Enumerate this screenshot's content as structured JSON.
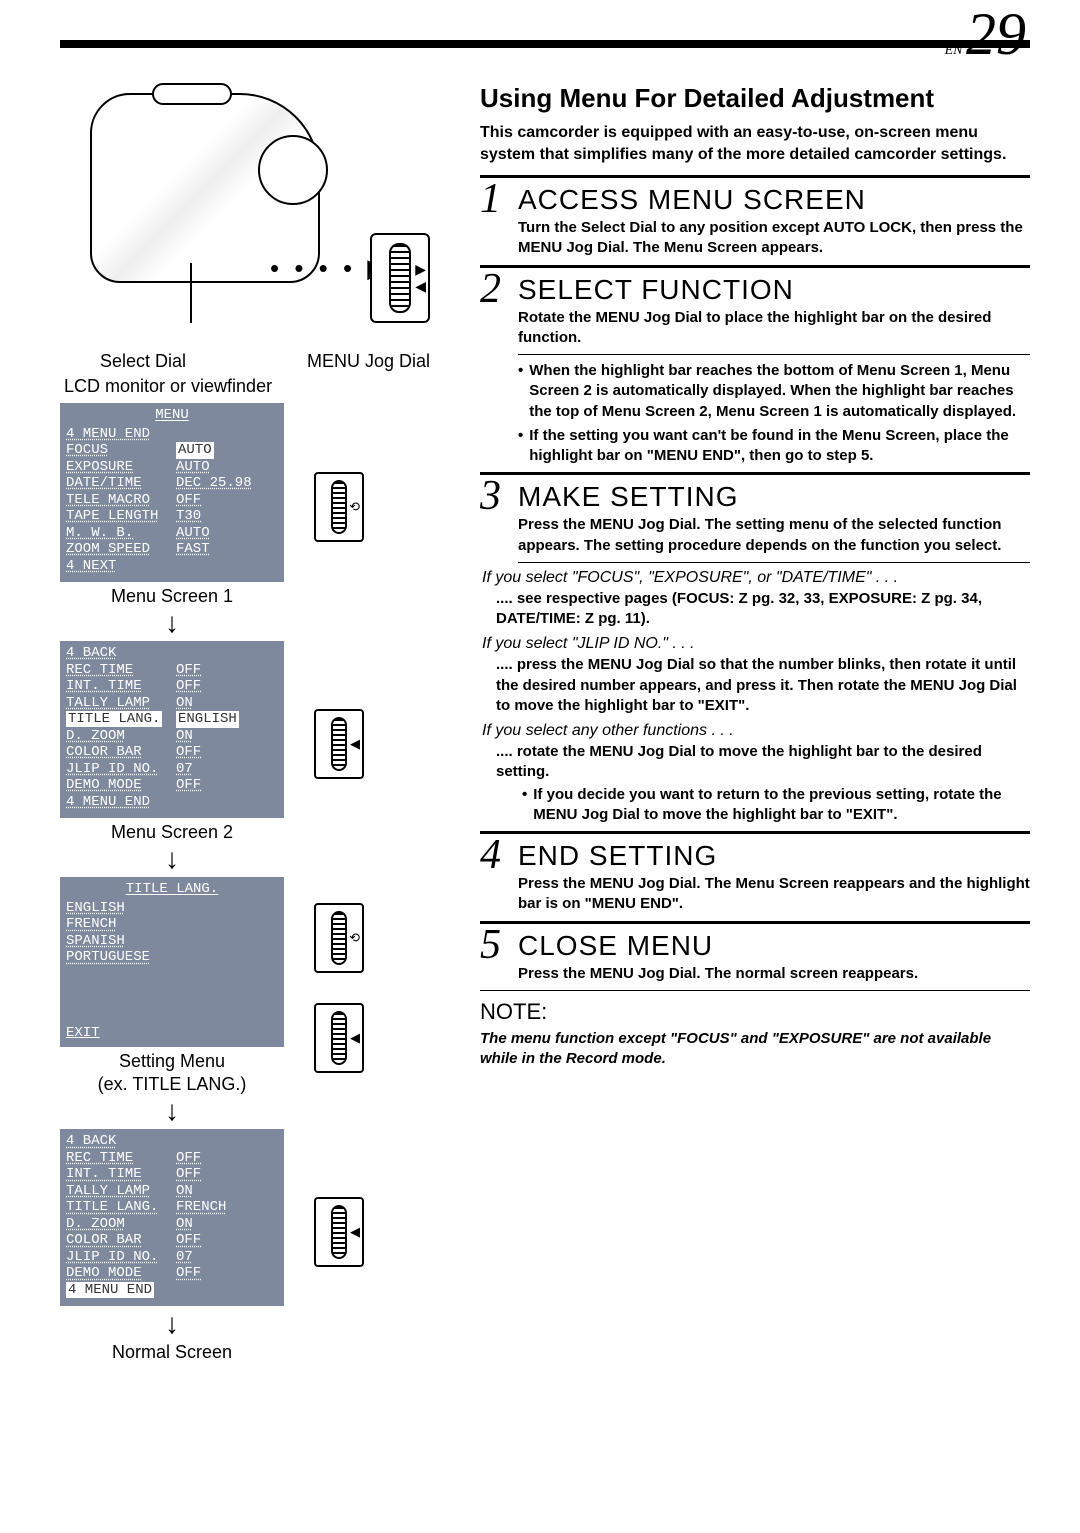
{
  "page": {
    "prefix": "EN",
    "number": "29"
  },
  "colors": {
    "panel_bg": "#7e899d",
    "panel_fg": "#ffffff",
    "highlight_bg": "#ffffff",
    "highlight_fg": "#333333",
    "rule": "#000000",
    "page_bg": "#ffffff"
  },
  "left": {
    "select_dial": "Select Dial",
    "menu_jog_dial": "MENU Jog Dial",
    "lcd_label": "LCD monitor or viewfinder",
    "menu1": {
      "title": "MENU",
      "rows": [
        {
          "k": "4 MENU END",
          "v": ""
        },
        {
          "k": "FOCUS",
          "v": "AUTO",
          "hl": true
        },
        {
          "k": "EXPOSURE",
          "v": "AUTO"
        },
        {
          "k": "DATE/TIME",
          "v": "DEC 25.98"
        },
        {
          "k": "TELE MACRO",
          "v": "OFF"
        },
        {
          "k": "TAPE LENGTH",
          "v": "T30"
        },
        {
          "k": "M. W. B.",
          "v": "AUTO"
        },
        {
          "k": "ZOOM SPEED",
          "v": "FAST"
        },
        {
          "k": "4 NEXT",
          "v": ""
        }
      ],
      "caption": "Menu Screen 1"
    },
    "menu2": {
      "rows": [
        {
          "k": "4 BACK",
          "v": ""
        },
        {
          "k": "REC TIME",
          "v": "OFF"
        },
        {
          "k": "INT. TIME",
          "v": "OFF"
        },
        {
          "k": "TALLY LAMP",
          "v": "ON"
        },
        {
          "k": "TITLE LANG.",
          "v": "ENGLISH",
          "hl": true,
          "hl_key": true
        },
        {
          "k": "D. ZOOM",
          "v": "ON"
        },
        {
          "k": "COLOR BAR",
          "v": "OFF"
        },
        {
          "k": "JLIP ID NO.",
          "v": "07"
        },
        {
          "k": "DEMO MODE",
          "v": "OFF"
        },
        {
          "k": "4 MENU END",
          "v": ""
        }
      ],
      "caption": "Menu Screen 2"
    },
    "setting_menu": {
      "title": "TITLE LANG.",
      "rows": [
        {
          "k": "ENGLISH"
        },
        {
          "k": "FRENCH",
          "hl": true
        },
        {
          "k": "SPANISH"
        },
        {
          "k": "PORTUGUESE"
        }
      ],
      "exit": "EXIT",
      "caption1": "Setting Menu",
      "caption2": "(ex. TITLE LANG.)"
    },
    "menu2_changed": {
      "rows": [
        {
          "k": "4 BACK",
          "v": ""
        },
        {
          "k": "REC TIME",
          "v": "OFF"
        },
        {
          "k": "INT. TIME",
          "v": "OFF"
        },
        {
          "k": "TALLY LAMP",
          "v": "ON"
        },
        {
          "k": "TITLE LANG.",
          "v": "FRENCH"
        },
        {
          "k": "D. ZOOM",
          "v": "ON"
        },
        {
          "k": "COLOR BAR",
          "v": "OFF"
        },
        {
          "k": "JLIP ID NO.",
          "v": "07"
        },
        {
          "k": "DEMO MODE",
          "v": "OFF"
        },
        {
          "k": "4 MENU END",
          "v": "",
          "hl_key": true
        }
      ],
      "caption": "Normal Screen"
    }
  },
  "right": {
    "heading": "Using Menu For Detailed Adjustment",
    "intro": "This camcorder is equipped with an easy-to-use, on-screen menu system that simplifies many of the more detailed camcorder settings.",
    "steps": [
      {
        "n": "1",
        "title": "ACCESS MENU SCREEN",
        "body": "Turn the Select Dial to any position except AUTO LOCK, then press the MENU Jog Dial. The Menu Screen appears."
      },
      {
        "n": "2",
        "title": "SELECT FUNCTION",
        "body": "Rotate the MENU Jog Dial to place the highlight bar on the desired function.",
        "bullets": [
          "When the highlight bar reaches the bottom of Menu Screen 1, Menu Screen 2 is automatically displayed. When the highlight bar reaches the top of Menu Screen 2, Menu Screen 1 is automatically displayed.",
          "If the setting you want can't be found in the Menu Screen, place the highlight bar on \"MENU END\", then go to step 5."
        ]
      },
      {
        "n": "3",
        "title": "MAKE SETTING",
        "body": "Press the MENU Jog Dial. The setting menu of the selected function appears. The setting procedure depends on the function you select.",
        "if1_label": "If you select \"FOCUS\", \"EXPOSURE\", or \"DATE/TIME\" . . .",
        "if1_body": ".... see respective pages (FOCUS: Z pg. 32, 33, EXPOSURE: Z pg. 34, DATE/TIME: Z pg. 11).",
        "if2_label": "If you select \"JLIP ID NO.\" . . .",
        "if2_body": ".... press the MENU Jog Dial so that the number blinks, then rotate it until the desired number appears, and press it. Then rotate the MENU Jog Dial to move the highlight bar to \"EXIT\".",
        "if3_label": "If you select any other functions . . .",
        "if3_body": ".... rotate the MENU Jog Dial to move the highlight bar to the desired setting.",
        "if3_bullet": "If you decide you want to return to the previous setting, rotate the MENU Jog Dial to move the highlight bar to \"EXIT\"."
      },
      {
        "n": "4",
        "title": "END SETTING",
        "body": "Press the MENU Jog Dial. The Menu Screen reappears and the highlight bar is on \"MENU END\"."
      },
      {
        "n": "5",
        "title": "CLOSE MENU",
        "body": "Press the MENU Jog Dial. The normal screen reappears."
      }
    ],
    "note_label": "NOTE:",
    "note_body": "The menu function except \"FOCUS\" and \"EXPOSURE\" are not available while in the Record mode."
  }
}
